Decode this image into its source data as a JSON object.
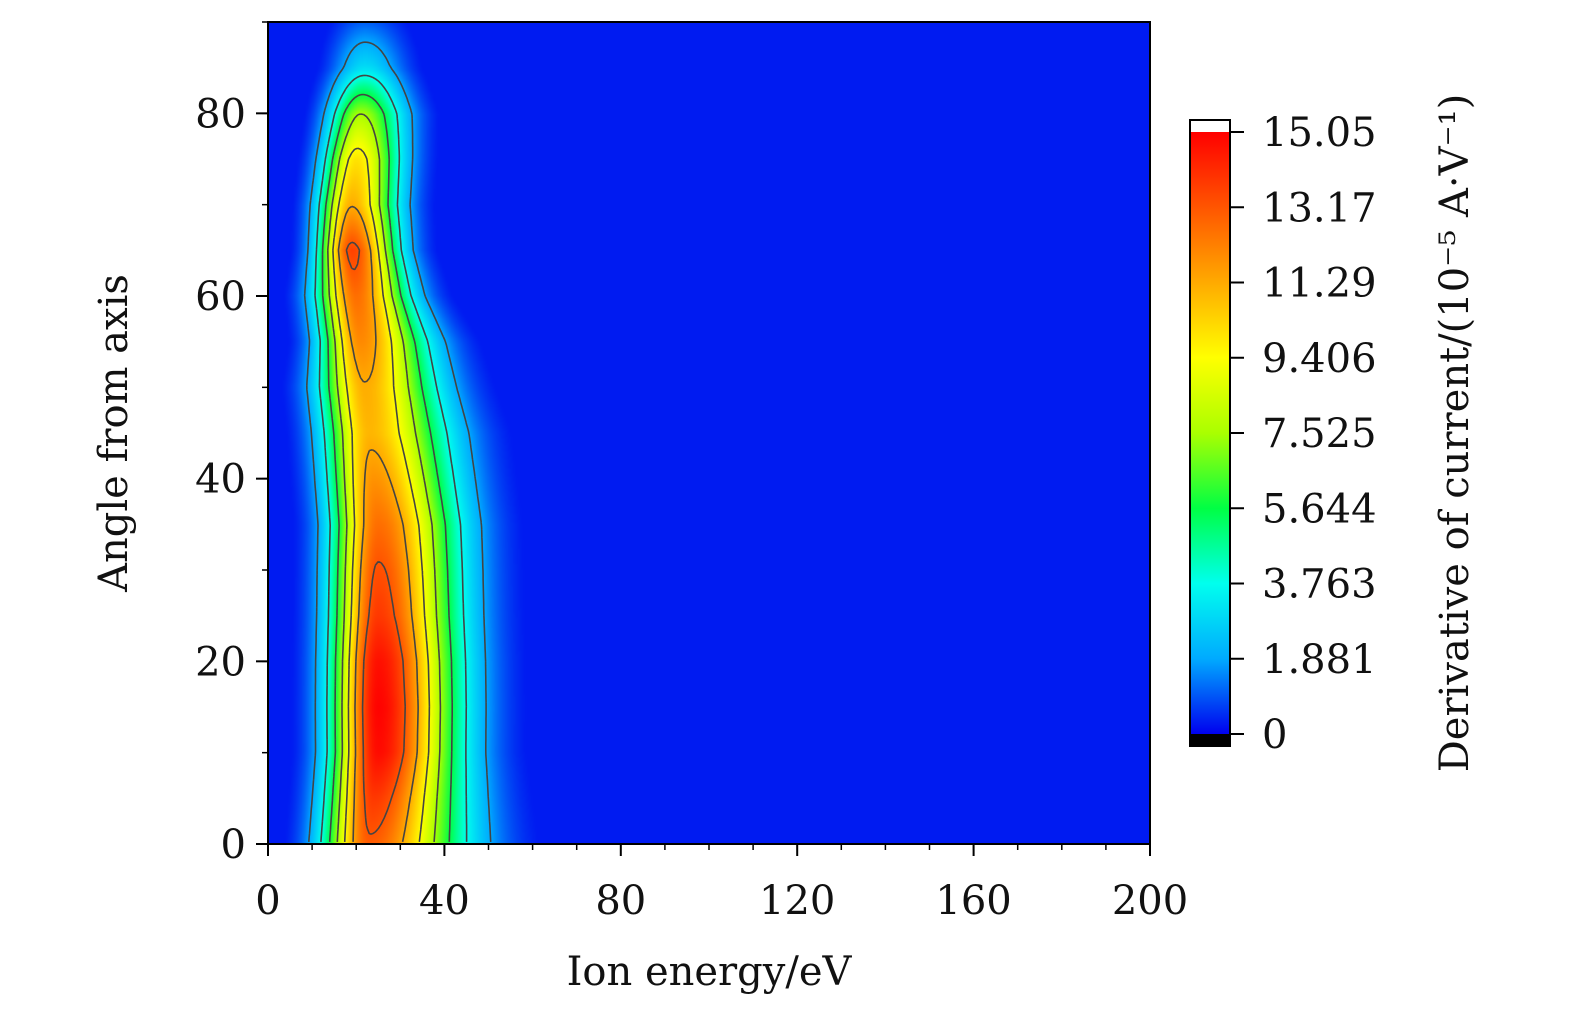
{
  "chart_data": {
    "type": "heatmap",
    "xlabel": "Ion energy/eV",
    "ylabel": "Angle from axis",
    "xlim": [
      0,
      200
    ],
    "ylim": [
      0,
      90
    ],
    "x_ticks": [
      "0",
      "40",
      "80",
      "120",
      "160",
      "200"
    ],
    "y_ticks": [
      "0",
      "20",
      "40",
      "60",
      "80"
    ],
    "colorbar": {
      "label": "Derivative of current/(10⁻⁵ A·V⁻¹)",
      "range": [
        0,
        15.05
      ],
      "ticks": [
        "0",
        "1.881",
        "3.763",
        "5.644",
        "7.525",
        "9.406",
        "11.29",
        "13.17",
        "15.05"
      ],
      "colormap": [
        "#0000ee",
        "#00aaff",
        "#00ffee",
        "#00ff44",
        "#aaff00",
        "#ffff00",
        "#ffaa00",
        "#ff5500",
        "#ff0000"
      ],
      "under_color": "#000000",
      "over_color": "#ffffff"
    },
    "ridge": {
      "angles": [
        0,
        5,
        10,
        15,
        20,
        25,
        30,
        35,
        40,
        45,
        50,
        55,
        60,
        65,
        70,
        75,
        80,
        85,
        90
      ],
      "peak_energy_eV": [
        23,
        24,
        25,
        25,
        25,
        25,
        25,
        25,
        24,
        23,
        22,
        21,
        20,
        19,
        19,
        20,
        21,
        22,
        22
      ],
      "peak_value": [
        13.0,
        13.8,
        14.8,
        15.0,
        14.7,
        13.8,
        13.3,
        12.6,
        11.8,
        11.0,
        11.2,
        12.0,
        12.6,
        13.6,
        11.2,
        10.0,
        7.5,
        3.0,
        1.0
      ],
      "width_low_eV": [
        7,
        7,
        7,
        7,
        7,
        7,
        7,
        7,
        7,
        7,
        7,
        6,
        6,
        5,
        5,
        5,
        5,
        5,
        5
      ],
      "width_high_eV": [
        14,
        13,
        12,
        12,
        12,
        12,
        12,
        12,
        12,
        12,
        11,
        10,
        8,
        7,
        7,
        7,
        7,
        6,
        6
      ]
    },
    "background_value": 0.3,
    "contour_levels": [
      1.881,
      3.763,
      5.644,
      7.525,
      9.406,
      11.29,
      13.17,
      15.05
    ]
  }
}
